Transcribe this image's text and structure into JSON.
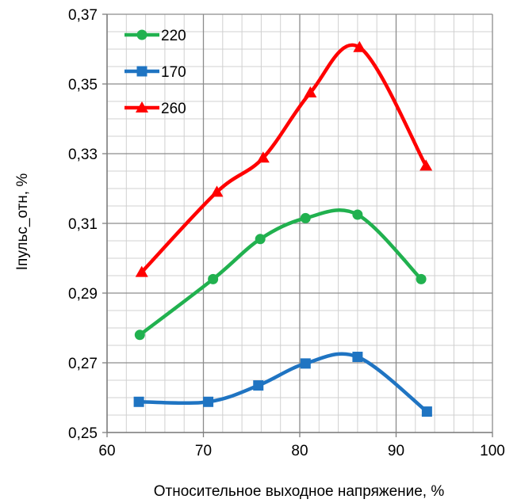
{
  "chart_data": {
    "type": "line",
    "xlabel": "Относительное выходное напряжение, %",
    "ylabel": "Iпульс_отн, %",
    "xlim": [
      60,
      100
    ],
    "ylim": [
      0.25,
      0.37
    ],
    "x_ticks": [
      60,
      70,
      80,
      90,
      100
    ],
    "x_tick_labels": [
      "60",
      "70",
      "80",
      "90",
      "100"
    ],
    "y_ticks": [
      0.25,
      0.27,
      0.29,
      0.31,
      0.33,
      0.35,
      0.37
    ],
    "y_tick_labels": [
      "0,25",
      "0,27",
      "0,29",
      "0,31",
      "0,33",
      "0,35",
      "0,37"
    ],
    "grid": true,
    "smooth": true,
    "legend_position": "top-left",
    "series": [
      {
        "name": "220",
        "color": "#21b14f",
        "marker": "circle",
        "x": [
          63.4,
          71.0,
          75.9,
          80.6,
          86.0,
          92.6
        ],
        "y": [
          0.278,
          0.294,
          0.3055,
          0.3115,
          0.3125,
          0.294
        ]
      },
      {
        "name": "170",
        "color": "#1f74c2",
        "marker": "square",
        "x": [
          63.3,
          70.5,
          75.7,
          80.6,
          86.0,
          93.2
        ],
        "y": [
          0.2588,
          0.2588,
          0.2635,
          0.2698,
          0.2717,
          0.256
        ]
      },
      {
        "name": "260",
        "color": "#ff0000",
        "marker": "triangle",
        "x": [
          63.6,
          71.4,
          76.2,
          81.1,
          86.2,
          93.1
        ],
        "y": [
          0.296,
          0.319,
          0.3288,
          0.3475,
          0.3605,
          0.3265
        ]
      }
    ]
  }
}
